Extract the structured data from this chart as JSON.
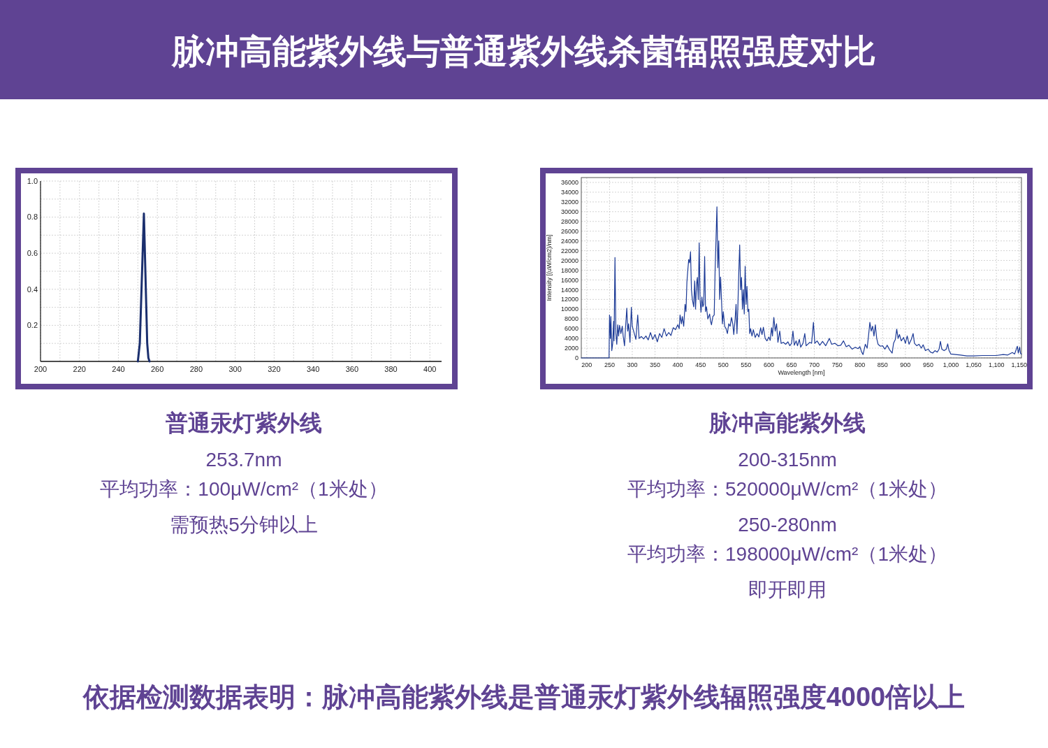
{
  "chart_data": [
    {
      "type": "other",
      "title": "脉冲高能紫外线与普通紫外线杀菌辐照强度对比",
      "annotations": [
        "依据检测数据表明：脉冲高能紫外线是普通汞灯紫外线辐照强度4000倍以上"
      ]
    },
    {
      "type": "line",
      "title": "普通汞灯紫外线",
      "annotations": [
        "253.7nm",
        "平均功率：100μW/cm²（1米处）",
        "需预热5分钟以上"
      ],
      "xlim": [
        200,
        406
      ],
      "ylim": [
        0,
        1
      ],
      "xticks": [
        200,
        {
          "value": 210,
          "label": null
        },
        220,
        {
          "value": 230,
          "label": null
        },
        240,
        {
          "value": 250,
          "label": null
        },
        260,
        {
          "value": 270,
          "label": null
        },
        280,
        {
          "value": 290,
          "label": null
        },
        300,
        {
          "value": 310,
          "label": null
        },
        320,
        {
          "value": 330,
          "label": null
        },
        340,
        {
          "value": 350,
          "label": null
        },
        360,
        {
          "value": 370,
          "label": null
        },
        380,
        {
          "value": 390,
          "label": null
        },
        400
      ],
      "yticks": [
        {
          "value": 0.1,
          "label": null
        },
        0.2,
        {
          "value": 0.3,
          "label": null
        },
        0.4,
        {
          "value": 0.5,
          "label": null
        },
        0.6,
        {
          "value": 0.7,
          "label": null
        },
        0.8,
        {
          "value": 0.9,
          "label": null
        },
        {
          "value": 1.0,
          "label": "1.0"
        }
      ],
      "grid": true,
      "series": [
        {
          "color": "#1b2f6e",
          "x": [
            250,
            251,
            253.1,
            254.8,
            255.4,
            256
          ],
          "values": [
            0,
            0.1,
            0.82,
            0.1,
            0.02,
            0
          ]
        }
      ]
    },
    {
      "type": "line",
      "title": "脉冲高能紫外线",
      "annotations": [
        "200-315nm",
        "平均功率：520000μW/cm²（1米处）",
        "250-280nm",
        "平均功率：198000μW/cm²（1米处）",
        "即开即用"
      ],
      "xlabel": "Wavelength [nm]",
      "ylabel": "Intensity [(uW/cm2)/nm]",
      "xlim": [
        188,
        1155
      ],
      "ylim": [
        0,
        37000
      ],
      "xticks": [
        200,
        250,
        300,
        350,
        400,
        450,
        500,
        550,
        600,
        650,
        700,
        750,
        800,
        850,
        900,
        950,
        {
          "value": 1000,
          "label": "1,000"
        },
        {
          "value": 1050,
          "label": "1,050"
        },
        {
          "value": 1100,
          "label": "1,100"
        },
        {
          "value": 1150,
          "label": "1,150"
        }
      ],
      "yticks": [
        0,
        2000,
        4000,
        6000,
        8000,
        10000,
        12000,
        14000,
        16000,
        18000,
        20000,
        22000,
        24000,
        26000,
        28000,
        30000,
        32000,
        34000,
        36000
      ],
      "grid": true,
      "series": [
        {
          "color": "#1c3a96",
          "x": [
            188,
            249,
            250,
            252,
            253,
            255,
            257,
            259,
            260,
            262,
            264,
            266,
            268,
            270,
            272,
            275,
            278,
            280,
            283,
            285,
            288,
            290,
            292,
            295,
            298,
            300,
            303,
            306,
            308,
            310,
            312,
            315,
            320,
            325,
            330,
            335,
            340,
            345,
            350,
            355,
            360,
            365,
            370,
            375,
            380,
            385,
            390,
            395,
            400,
            403,
            405,
            408,
            410,
            413,
            416,
            418,
            420,
            422,
            424,
            426,
            428,
            430,
            432,
            435,
            437,
            439,
            441,
            443,
            445,
            447,
            449,
            451,
            453,
            455,
            457,
            459,
            461,
            463,
            466,
            470,
            472,
            474,
            477,
            480,
            482,
            484,
            486,
            488,
            490,
            492,
            494,
            496,
            498,
            500,
            503,
            506,
            509,
            512,
            515,
            518,
            521,
            523,
            526,
            528,
            530,
            532,
            534,
            536,
            538,
            540,
            542,
            544,
            546,
            548,
            550,
            552,
            554,
            556,
            558,
            560,
            563,
            566,
            570,
            574,
            578,
            582,
            585,
            588,
            592,
            596,
            600,
            603,
            606,
            608,
            611,
            614,
            617,
            620,
            624,
            627,
            632,
            637,
            642,
            646,
            650,
            653,
            656,
            660,
            663,
            667,
            670,
            675,
            679,
            682,
            690,
            694,
            698,
            701,
            706,
            712,
            718,
            725,
            733,
            738,
            745,
            752,
            758,
            764,
            770,
            776,
            783,
            790,
            796,
            800,
            804,
            807,
            812,
            816,
            819,
            822,
            825,
            828,
            831,
            834,
            837,
            840,
            845,
            850,
            855,
            860,
            865,
            871,
            874,
            878,
            881,
            884,
            887,
            891,
            896,
            900,
            904,
            908,
            913,
            917,
            920,
            925,
            930,
            935,
            939,
            944,
            950,
            955,
            960,
            965,
            970,
            974,
            977,
            980,
            985,
            990,
            993,
            996,
            1000,
            1010,
            1021,
            1035,
            1050,
            1070,
            1090,
            1100,
            1115,
            1125,
            1135,
            1140,
            1146,
            1148,
            1151,
            1153,
            1155
          ],
          "values": [
            0,
            0,
            8800,
            4000,
            8500,
            1500,
            3000,
            7500,
            3500,
            20600,
            5000,
            2800,
            6800,
            4500,
            6700,
            5000,
            6500,
            4500,
            2500,
            6000,
            10200,
            5500,
            7000,
            3200,
            10400,
            6500,
            5500,
            4500,
            3800,
            6500,
            8800,
            4000,
            4400,
            3900,
            4500,
            3700,
            5200,
            3800,
            4800,
            3300,
            5000,
            4200,
            6000,
            4500,
            5200,
            4600,
            6200,
            5800,
            6800,
            6000,
            8800,
            7000,
            8500,
            6500,
            11000,
            9500,
            15500,
            18000,
            20200,
            19500,
            21800,
            14000,
            12000,
            10500,
            15800,
            10000,
            15000,
            16500,
            12000,
            23600,
            12000,
            9400,
            12500,
            10500,
            11000,
            20800,
            9500,
            10500,
            8000,
            9000,
            7500,
            6800,
            8500,
            8800,
            18000,
            24500,
            31000,
            18500,
            24000,
            12000,
            16600,
            12000,
            7000,
            9500,
            6500,
            6000,
            5000,
            7000,
            6500,
            8300,
            6900,
            4800,
            8000,
            11000,
            5000,
            10500,
            17500,
            23200,
            14000,
            16500,
            10000,
            14000,
            9000,
            18800,
            11000,
            14700,
            9500,
            10000,
            5000,
            6000,
            4500,
            5800,
            4200,
            5000,
            4300,
            6200,
            4800,
            6300,
            4000,
            3500,
            4300,
            3600,
            6200,
            4500,
            8300,
            5500,
            7000,
            3200,
            5500,
            3000,
            3200,
            2800,
            3300,
            2500,
            3000,
            5500,
            2600,
            3500,
            2500,
            3800,
            2200,
            3000,
            5000,
            2500,
            3200,
            3000,
            7300,
            3000,
            3500,
            2600,
            3400,
            2500,
            4000,
            2800,
            3000,
            2500,
            2600,
            3500,
            2300,
            2600,
            1800,
            2200,
            1900,
            2300,
            1200,
            700,
            2800,
            2000,
            4500,
            7300,
            5500,
            6500,
            4500,
            6800,
            4000,
            2800,
            2400,
            2500,
            1800,
            2600,
            1700,
            1000,
            3000,
            3800,
            5900,
            4000,
            4800,
            3500,
            4200,
            3000,
            4500,
            2800,
            3800,
            5000,
            3000,
            2500,
            2800,
            2000,
            2700,
            1500,
            1800,
            1200,
            1000,
            1500,
            1200,
            1800,
            3400,
            1800,
            1500,
            1800,
            2900,
            1500,
            800,
            700,
            600,
            400,
            400,
            500,
            500,
            500,
            700,
            600,
            1100,
            800,
            2400,
            1000,
            2200,
            900,
            800
          ]
        }
      ]
    }
  ]
}
